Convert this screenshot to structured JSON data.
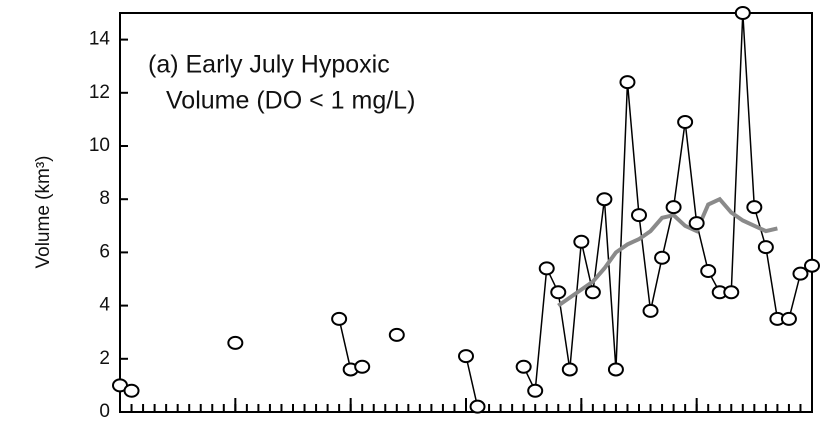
{
  "chart_data": {
    "type": "line",
    "annotation": [
      "(a) Early July Hypoxic",
      "Volume (DO < 1 mg/L)"
    ],
    "y_label": "Volume (km³)",
    "x": [
      0,
      1,
      2,
      3,
      4,
      5,
      6,
      7,
      8,
      9,
      10,
      11,
      12,
      13,
      14,
      15,
      16,
      17,
      18,
      19,
      20,
      21,
      22,
      23,
      24,
      25,
      26,
      27,
      28,
      29,
      30,
      31,
      32,
      33,
      34,
      35,
      36,
      37,
      38,
      39,
      40,
      41,
      42,
      43,
      44,
      45,
      46,
      47,
      48,
      49,
      50,
      51,
      52,
      53,
      54,
      55,
      56,
      57,
      58,
      59,
      60
    ],
    "series": [
      {
        "color": "#000000",
        "values": [
          1.0,
          0.8,
          null,
          null,
          null,
          null,
          null,
          null,
          null,
          null,
          2.6,
          null,
          null,
          null,
          null,
          null,
          null,
          null,
          null,
          3.5,
          1.6,
          1.7,
          null,
          null,
          2.9,
          null,
          null,
          null,
          null,
          null,
          2.1,
          0.2,
          null,
          null,
          null,
          1.7,
          0.8,
          5.4,
          4.5,
          1.6,
          6.4,
          4.5,
          8.0,
          1.6,
          12.4,
          7.4,
          3.8,
          5.8,
          7.7,
          10.9,
          7.1,
          5.3,
          4.5,
          4.5,
          15.0,
          7.7,
          6.2,
          3.5,
          3.5,
          5.2,
          5.5
        ]
      },
      {
        "color": "#8a8a8a",
        "values": [
          null,
          null,
          null,
          null,
          null,
          null,
          null,
          null,
          null,
          null,
          null,
          null,
          null,
          null,
          null,
          null,
          null,
          null,
          null,
          null,
          null,
          null,
          null,
          null,
          null,
          null,
          null,
          null,
          null,
          null,
          null,
          null,
          null,
          null,
          null,
          null,
          null,
          null,
          4.0,
          4.3,
          4.6,
          4.9,
          5.4,
          6.0,
          6.3,
          6.5,
          6.8,
          7.3,
          7.4,
          7.0,
          6.8,
          7.8,
          8.0,
          7.5,
          7.2,
          7.0,
          6.8,
          6.9,
          null,
          null,
          null
        ]
      }
    ],
    "xlim": [
      0,
      60
    ],
    "xticks": [
      0,
      10,
      20,
      30,
      40,
      50,
      60
    ],
    "ylim": [
      0,
      15
    ],
    "yticks": [
      0,
      2,
      4,
      6,
      8,
      10,
      12,
      14
    ]
  }
}
